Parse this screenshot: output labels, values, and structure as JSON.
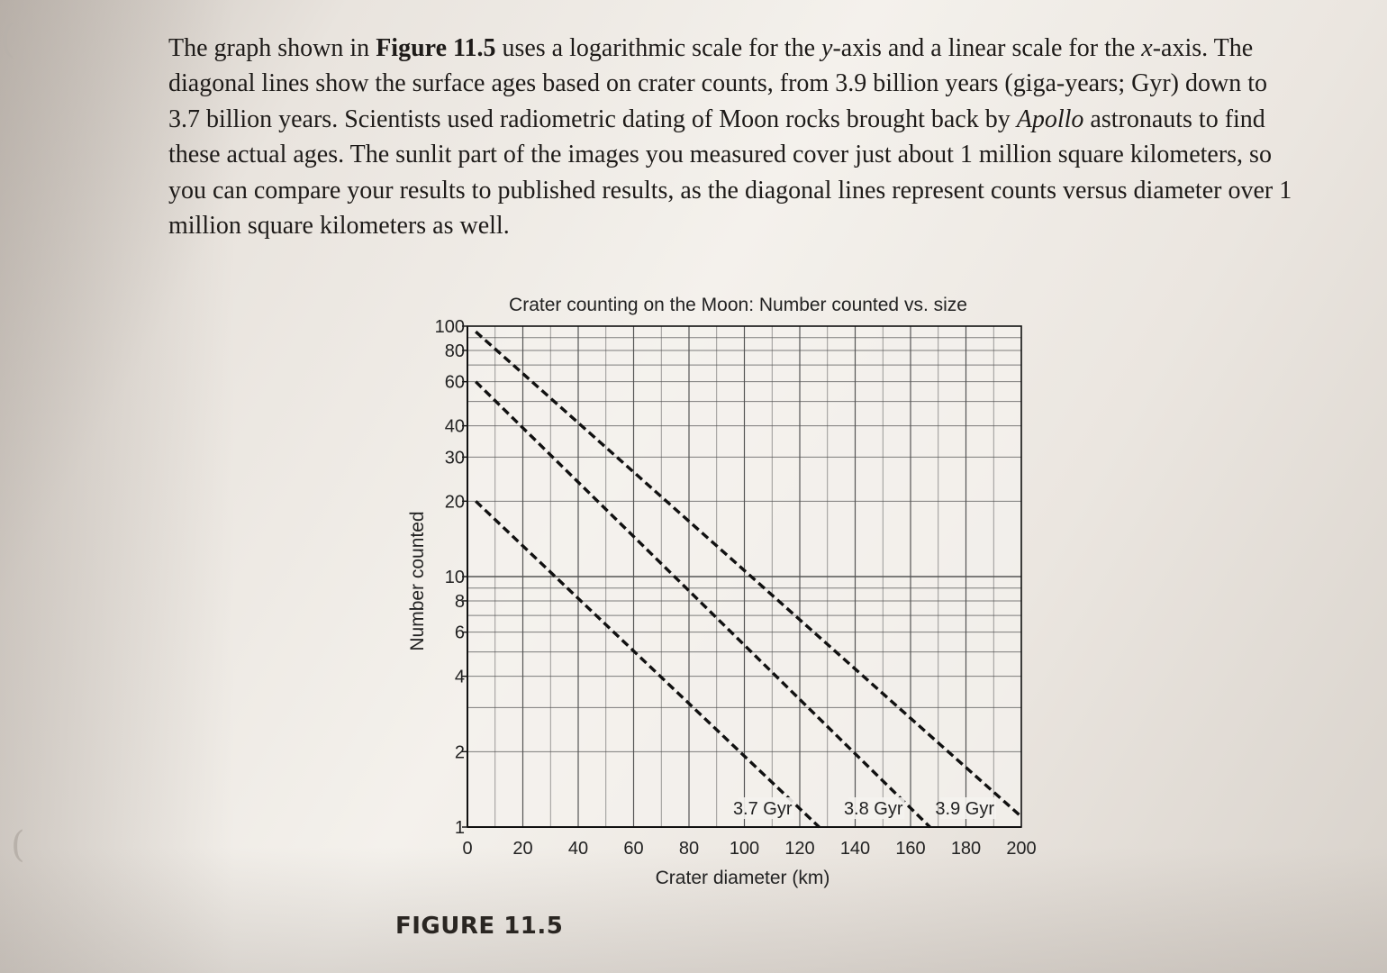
{
  "page": {
    "paragraph_parts": [
      {
        "style": "normal",
        "text": "The graph shown in "
      },
      {
        "style": "bold",
        "text": "Figure 11.5"
      },
      {
        "style": "normal",
        "text": " uses a logarithmic scale for the "
      },
      {
        "style": "italic",
        "text": "y"
      },
      {
        "style": "normal",
        "text": "-axis and a linear scale for the "
      },
      {
        "style": "italic",
        "text": "x"
      },
      {
        "style": "normal",
        "text": "-axis. The diagonal lines show the surface ages based on crater counts, from 3.9 billion years (giga-years; Gyr) down to 3.7 billion years. Scientists used radiometric dating of Moon rocks brought back by "
      },
      {
        "style": "italic",
        "text": "Apollo"
      },
      {
        "style": "normal",
        "text": " astronauts to find these actual ages. The sunlit part of the images you measured cover just about 1 million square kilometers, so you can compare your results to published results, as the diagonal lines represent counts versus diameter over 1 million square kilometers as well."
      }
    ],
    "figure_caption": "FIGURE 11.5",
    "margin_marks": [
      "(",
      "("
    ]
  },
  "chart_data": {
    "type": "line",
    "title": "Crater counting on the Moon: Number counted vs. size",
    "xlabel": "Crater diameter (km)",
    "ylabel": "Number counted",
    "xlim": [
      0,
      200
    ],
    "ylim": [
      1,
      100
    ],
    "y_scale": "log",
    "x_scale": "linear",
    "grid": true,
    "x_ticks": [
      0,
      20,
      40,
      60,
      80,
      100,
      120,
      140,
      160,
      180,
      200
    ],
    "x_tick_labels": [
      "0",
      "20",
      "40",
      "60",
      "80",
      "100",
      "120",
      "140",
      "160",
      "180",
      "200"
    ],
    "y_ticks": [
      1,
      2,
      4,
      6,
      8,
      10,
      20,
      30,
      40,
      60,
      80,
      100
    ],
    "y_tick_labels": [
      "1",
      "2",
      "4",
      "6",
      "8",
      "10",
      "20",
      "30",
      "40",
      "60",
      "80",
      "100"
    ],
    "series": [
      {
        "name": "3.7 Gyr",
        "style": "dashed",
        "color": "#111111",
        "points": [
          [
            3,
            20
          ],
          [
            127,
            1
          ]
        ]
      },
      {
        "name": "3.8 Gyr",
        "style": "dashed",
        "color": "#111111",
        "points": [
          [
            3,
            60
          ],
          [
            167,
            1
          ]
        ]
      },
      {
        "name": "3.9 Gyr",
        "style": "dashed",
        "color": "#111111",
        "points": [
          [
            3,
            95
          ],
          [
            200,
            1.1
          ]
        ]
      }
    ],
    "colors": {
      "grid": "#555555",
      "axis": "#111111",
      "plot_bg": "#f4f2ee"
    }
  }
}
